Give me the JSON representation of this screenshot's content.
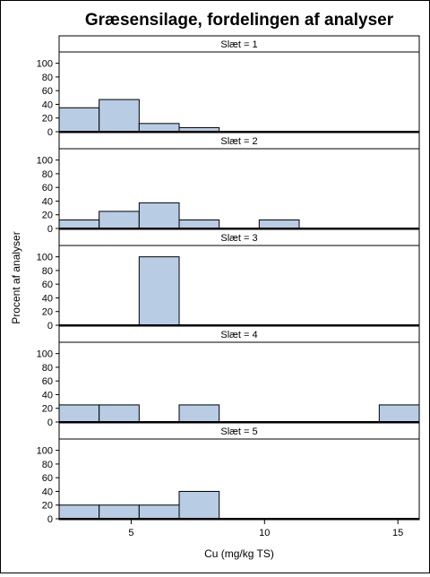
{
  "chart_data": {
    "type": "bar",
    "title": "Græsensilage, fordelingen af analyser",
    "xlabel": "Cu (mg/kg TS)",
    "ylabel": "Procent af analyser",
    "panel_variable": "Slæt",
    "bin_width": 1.5,
    "xlim": [
      2.3,
      15.8
    ],
    "ylim": [
      0,
      110
    ],
    "x_ticks": [
      5,
      10,
      15
    ],
    "y_ticks": [
      0,
      20,
      40,
      60,
      80,
      100
    ],
    "colors": {
      "bar_fill": "#b8cce4",
      "bar_stroke": "#000000"
    },
    "panels": [
      {
        "label": "Slæt = 1",
        "bins": [
          {
            "start": 2.3,
            "end": 3.8,
            "value": 35
          },
          {
            "start": 3.8,
            "end": 5.3,
            "value": 47
          },
          {
            "start": 5.3,
            "end": 6.8,
            "value": 12
          },
          {
            "start": 6.8,
            "end": 8.3,
            "value": 6
          }
        ]
      },
      {
        "label": "Slæt = 2",
        "bins": [
          {
            "start": 2.3,
            "end": 3.8,
            "value": 12.5
          },
          {
            "start": 3.8,
            "end": 5.3,
            "value": 25
          },
          {
            "start": 5.3,
            "end": 6.8,
            "value": 37.5
          },
          {
            "start": 6.8,
            "end": 8.3,
            "value": 12.5
          },
          {
            "start": 9.8,
            "end": 11.3,
            "value": 12.5
          }
        ]
      },
      {
        "label": "Slæt = 3",
        "bins": [
          {
            "start": 5.3,
            "end": 6.8,
            "value": 100
          }
        ]
      },
      {
        "label": "Slæt = 4",
        "bins": [
          {
            "start": 2.3,
            "end": 3.8,
            "value": 25
          },
          {
            "start": 3.8,
            "end": 5.3,
            "value": 25
          },
          {
            "start": 6.8,
            "end": 8.3,
            "value": 25
          },
          {
            "start": 14.3,
            "end": 15.8,
            "value": 25
          }
        ]
      },
      {
        "label": "Slæt = 5",
        "bins": [
          {
            "start": 2.3,
            "end": 3.8,
            "value": 20
          },
          {
            "start": 3.8,
            "end": 5.3,
            "value": 20
          },
          {
            "start": 5.3,
            "end": 6.8,
            "value": 20
          },
          {
            "start": 6.8,
            "end": 8.3,
            "value": 40
          }
        ]
      }
    ]
  }
}
